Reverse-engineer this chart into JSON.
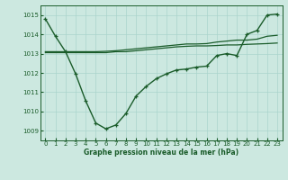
{
  "title": "Graphe pression niveau de la mer (hPa)",
  "background_color": "#cce8e0",
  "grid_color": "#aad4cc",
  "line_color": "#1a5c2a",
  "ylim": [
    1008.5,
    1015.5
  ],
  "xlim": [
    -0.5,
    23.5
  ],
  "yticks": [
    1009,
    1010,
    1011,
    1012,
    1013,
    1014,
    1015
  ],
  "xticks": [
    0,
    1,
    2,
    3,
    4,
    5,
    6,
    7,
    8,
    9,
    10,
    11,
    12,
    13,
    14,
    15,
    16,
    17,
    18,
    19,
    20,
    21,
    22,
    23
  ],
  "line1_y": [
    1013.05,
    1013.05,
    1013.05,
    1013.05,
    1013.05,
    1013.05,
    1013.05,
    1013.1,
    1013.1,
    1013.15,
    1013.2,
    1013.25,
    1013.3,
    1013.35,
    1013.38,
    1013.4,
    1013.4,
    1013.42,
    1013.45,
    1013.45,
    1013.48,
    1013.5,
    1013.52,
    1013.55
  ],
  "line2_y": [
    1013.1,
    1013.1,
    1013.1,
    1013.1,
    1013.1,
    1013.1,
    1013.12,
    1013.15,
    1013.2,
    1013.25,
    1013.3,
    1013.35,
    1013.4,
    1013.45,
    1013.5,
    1013.5,
    1013.52,
    1013.6,
    1013.65,
    1013.7,
    1013.7,
    1013.75,
    1013.9,
    1013.95
  ],
  "line3_y": [
    1014.8,
    1013.9,
    1013.1,
    1011.95,
    1010.55,
    1009.4,
    1009.1,
    1009.3,
    1009.9,
    1010.8,
    1011.3,
    1011.7,
    1011.95,
    1012.15,
    1012.2,
    1012.3,
    1012.35,
    1012.9,
    1013.0,
    1012.9,
    1014.0,
    1014.2,
    1015.0,
    1015.05
  ]
}
